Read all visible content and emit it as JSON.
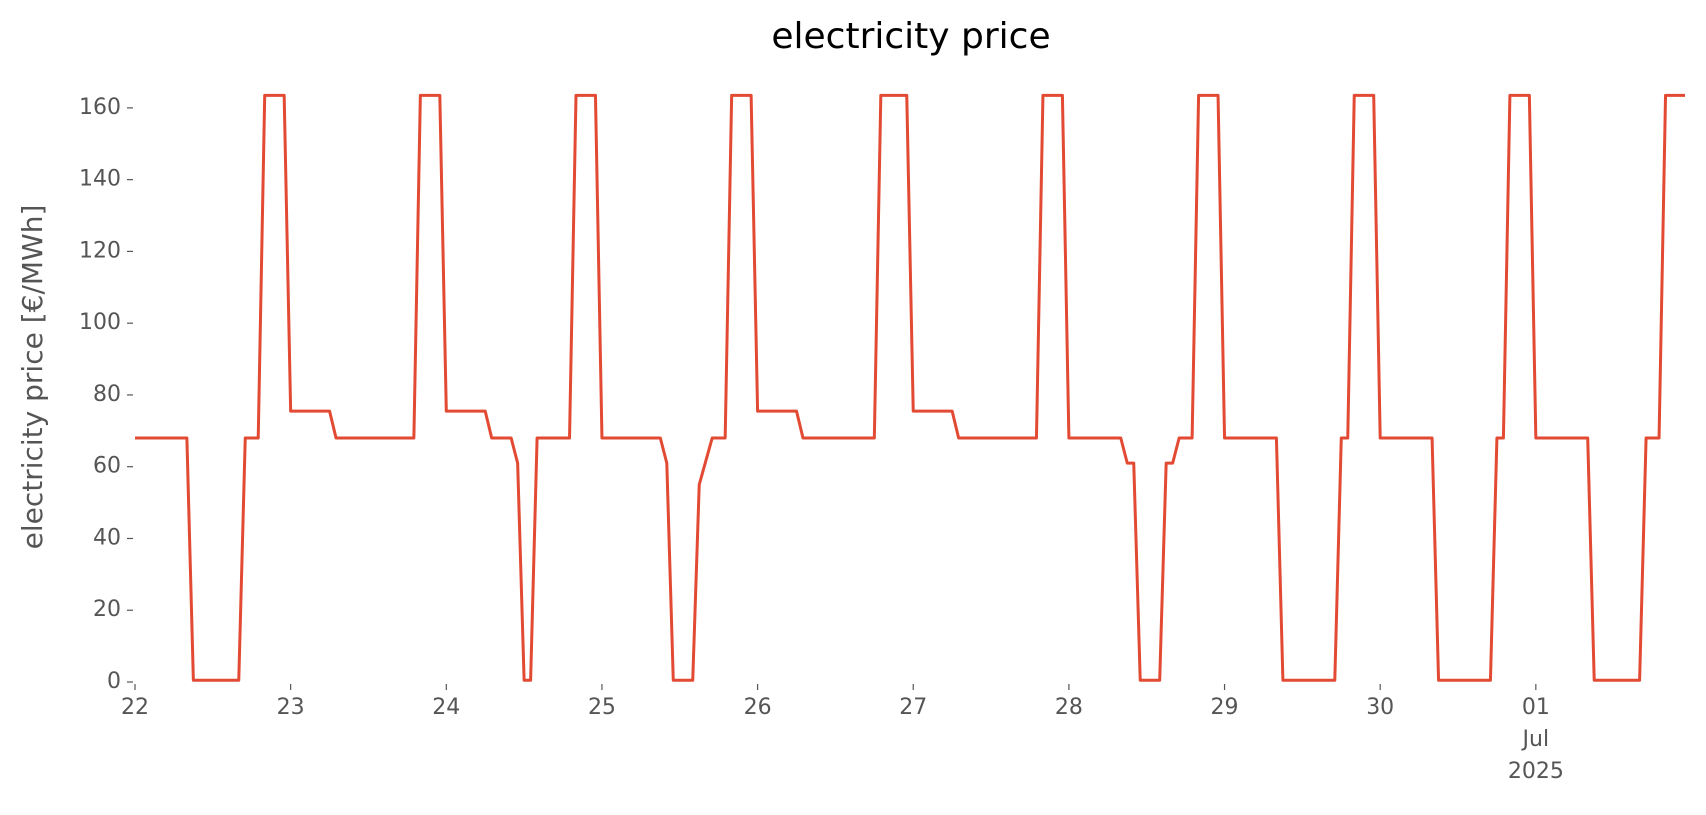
{
  "chart_data": {
    "type": "line",
    "title": "electricity price",
    "y_label": "electricity price [€/MWh]",
    "color": "#e24a33",
    "ylim": [
      0,
      170
    ],
    "yticks": [
      0,
      20,
      40,
      60,
      80,
      100,
      120,
      140,
      160
    ],
    "xlim": [
      "2025-06-22T00:00",
      "2025-07-01T23:00"
    ],
    "xticks": [
      {
        "value": "2025-06-22T00:00",
        "label": "22"
      },
      {
        "value": "2025-06-23T00:00",
        "label": "23"
      },
      {
        "value": "2025-06-24T00:00",
        "label": "24"
      },
      {
        "value": "2025-06-25T00:00",
        "label": "25"
      },
      {
        "value": "2025-06-26T00:00",
        "label": "26"
      },
      {
        "value": "2025-06-27T00:00",
        "label": "27"
      },
      {
        "value": "2025-06-28T00:00",
        "label": "28"
      },
      {
        "value": "2025-06-29T00:00",
        "label": "29"
      },
      {
        "value": "2025-06-30T00:00",
        "label": "30"
      },
      {
        "value": "2025-07-01T00:00",
        "label": "01\nJul\n2025"
      }
    ],
    "x": [
      "2025-06-22T00:00",
      "2025-06-22T01:00",
      "2025-06-22T02:00",
      "2025-06-22T03:00",
      "2025-06-22T04:00",
      "2025-06-22T05:00",
      "2025-06-22T06:00",
      "2025-06-22T07:00",
      "2025-06-22T08:00",
      "2025-06-22T09:00",
      "2025-06-22T10:00",
      "2025-06-22T11:00",
      "2025-06-22T12:00",
      "2025-06-22T13:00",
      "2025-06-22T14:00",
      "2025-06-22T15:00",
      "2025-06-22T16:00",
      "2025-06-22T17:00",
      "2025-06-22T18:00",
      "2025-06-22T19:00",
      "2025-06-22T20:00",
      "2025-06-22T21:00",
      "2025-06-22T22:00",
      "2025-06-22T23:00",
      "2025-06-23T00:00",
      "2025-06-23T01:00",
      "2025-06-23T02:00",
      "2025-06-23T03:00",
      "2025-06-23T04:00",
      "2025-06-23T05:00",
      "2025-06-23T06:00",
      "2025-06-23T07:00",
      "2025-06-23T08:00",
      "2025-06-23T09:00",
      "2025-06-23T10:00",
      "2025-06-23T11:00",
      "2025-06-23T12:00",
      "2025-06-23T13:00",
      "2025-06-23T14:00",
      "2025-06-23T15:00",
      "2025-06-23T16:00",
      "2025-06-23T17:00",
      "2025-06-23T18:00",
      "2025-06-23T19:00",
      "2025-06-23T20:00",
      "2025-06-23T21:00",
      "2025-06-23T22:00",
      "2025-06-23T23:00",
      "2025-06-24T00:00",
      "2025-06-24T01:00",
      "2025-06-24T02:00",
      "2025-06-24T03:00",
      "2025-06-24T04:00",
      "2025-06-24T05:00",
      "2025-06-24T06:00",
      "2025-06-24T07:00",
      "2025-06-24T08:00",
      "2025-06-24T09:00",
      "2025-06-24T10:00",
      "2025-06-24T11:00",
      "2025-06-24T12:00",
      "2025-06-24T13:00",
      "2025-06-24T14:00",
      "2025-06-24T15:00",
      "2025-06-24T16:00",
      "2025-06-24T17:00",
      "2025-06-24T18:00",
      "2025-06-24T19:00",
      "2025-06-24T20:00",
      "2025-06-24T21:00",
      "2025-06-24T22:00",
      "2025-06-24T23:00",
      "2025-06-25T00:00",
      "2025-06-25T01:00",
      "2025-06-25T02:00",
      "2025-06-25T03:00",
      "2025-06-25T04:00",
      "2025-06-25T05:00",
      "2025-06-25T06:00",
      "2025-06-25T07:00",
      "2025-06-25T08:00",
      "2025-06-25T09:00",
      "2025-06-25T10:00",
      "2025-06-25T11:00",
      "2025-06-25T12:00",
      "2025-06-25T13:00",
      "2025-06-25T14:00",
      "2025-06-25T15:00",
      "2025-06-25T16:00",
      "2025-06-25T17:00",
      "2025-06-25T18:00",
      "2025-06-25T19:00",
      "2025-06-25T20:00",
      "2025-06-25T21:00",
      "2025-06-25T22:00",
      "2025-06-25T23:00",
      "2025-06-26T00:00",
      "2025-06-26T01:00",
      "2025-06-26T02:00",
      "2025-06-26T03:00",
      "2025-06-26T04:00",
      "2025-06-26T05:00",
      "2025-06-26T06:00",
      "2025-06-26T07:00",
      "2025-06-26T08:00",
      "2025-06-26T09:00",
      "2025-06-26T10:00",
      "2025-06-26T11:00",
      "2025-06-26T12:00",
      "2025-06-26T13:00",
      "2025-06-26T14:00",
      "2025-06-26T15:00",
      "2025-06-26T16:00",
      "2025-06-26T17:00",
      "2025-06-26T18:00",
      "2025-06-26T19:00",
      "2025-06-26T20:00",
      "2025-06-26T21:00",
      "2025-06-26T22:00",
      "2025-06-26T23:00",
      "2025-06-27T00:00",
      "2025-06-27T01:00",
      "2025-06-27T02:00",
      "2025-06-27T03:00",
      "2025-06-27T04:00",
      "2025-06-27T05:00",
      "2025-06-27T06:00",
      "2025-06-27T07:00",
      "2025-06-27T08:00",
      "2025-06-27T09:00",
      "2025-06-27T10:00",
      "2025-06-27T11:00",
      "2025-06-27T12:00",
      "2025-06-27T13:00",
      "2025-06-27T14:00",
      "2025-06-27T15:00",
      "2025-06-27T16:00",
      "2025-06-27T17:00",
      "2025-06-27T18:00",
      "2025-06-27T19:00",
      "2025-06-27T20:00",
      "2025-06-27T21:00",
      "2025-06-27T22:00",
      "2025-06-27T23:00",
      "2025-06-28T00:00",
      "2025-06-28T01:00",
      "2025-06-28T02:00",
      "2025-06-28T03:00",
      "2025-06-28T04:00",
      "2025-06-28T05:00",
      "2025-06-28T06:00",
      "2025-06-28T07:00",
      "2025-06-28T08:00",
      "2025-06-28T09:00",
      "2025-06-28T10:00",
      "2025-06-28T11:00",
      "2025-06-28T12:00",
      "2025-06-28T13:00",
      "2025-06-28T14:00",
      "2025-06-28T15:00",
      "2025-06-28T16:00",
      "2025-06-28T17:00",
      "2025-06-28T18:00",
      "2025-06-28T19:00",
      "2025-06-28T20:00",
      "2025-06-28T21:00",
      "2025-06-28T22:00",
      "2025-06-28T23:00",
      "2025-06-29T00:00",
      "2025-06-29T01:00",
      "2025-06-29T02:00",
      "2025-06-29T03:00",
      "2025-06-29T04:00",
      "2025-06-29T05:00",
      "2025-06-29T06:00",
      "2025-06-29T07:00",
      "2025-06-29T08:00",
      "2025-06-29T09:00",
      "2025-06-29T10:00",
      "2025-06-29T11:00",
      "2025-06-29T12:00",
      "2025-06-29T13:00",
      "2025-06-29T14:00",
      "2025-06-29T15:00",
      "2025-06-29T16:00",
      "2025-06-29T17:00",
      "2025-06-29T18:00",
      "2025-06-29T19:00",
      "2025-06-29T20:00",
      "2025-06-29T21:00",
      "2025-06-29T22:00",
      "2025-06-29T23:00",
      "2025-06-30T00:00",
      "2025-06-30T01:00",
      "2025-06-30T02:00",
      "2025-06-30T03:00",
      "2025-06-30T04:00",
      "2025-06-30T05:00",
      "2025-06-30T06:00",
      "2025-06-30T07:00",
      "2025-06-30T08:00",
      "2025-06-30T09:00",
      "2025-06-30T10:00",
      "2025-06-30T11:00",
      "2025-06-30T12:00",
      "2025-06-30T13:00",
      "2025-06-30T14:00",
      "2025-06-30T15:00",
      "2025-06-30T16:00",
      "2025-06-30T17:00",
      "2025-06-30T18:00",
      "2025-06-30T19:00",
      "2025-06-30T20:00",
      "2025-06-30T21:00",
      "2025-06-30T22:00",
      "2025-06-30T23:00",
      "2025-07-01T00:00",
      "2025-07-01T01:00",
      "2025-07-01T02:00",
      "2025-07-01T03:00",
      "2025-07-01T04:00",
      "2025-07-01T05:00",
      "2025-07-01T06:00",
      "2025-07-01T07:00",
      "2025-07-01T08:00",
      "2025-07-01T09:00",
      "2025-07-01T10:00",
      "2025-07-01T11:00",
      "2025-07-01T12:00",
      "2025-07-01T13:00",
      "2025-07-01T14:00",
      "2025-07-01T15:00",
      "2025-07-01T16:00",
      "2025-07-01T17:00",
      "2025-07-01T18:00",
      "2025-07-01T19:00",
      "2025-07-01T20:00",
      "2025-07-01T21:00",
      "2025-07-01T22:00",
      "2025-07-01T23:00"
    ],
    "values": [
      68,
      68,
      68,
      68,
      68,
      68,
      68,
      68,
      68,
      0.5,
      0.5,
      0.5,
      0.5,
      0.5,
      0.5,
      0.5,
      0.5,
      68,
      68,
      68,
      163.5,
      163.5,
      163.5,
      163.5,
      75.5,
      75.5,
      75.5,
      75.5,
      75.5,
      75.5,
      75.5,
      68,
      68,
      68,
      68,
      68,
      68,
      68,
      68,
      68,
      68,
      68,
      68,
      68,
      163.5,
      163.5,
      163.5,
      163.5,
      75.5,
      75.5,
      75.5,
      75.5,
      75.5,
      75.5,
      75.5,
      68,
      68,
      68,
      68,
      61,
      0.5,
      0.5,
      68,
      68,
      68,
      68,
      68,
      68,
      163.5,
      163.5,
      163.5,
      163.5,
      68,
      68,
      68,
      68,
      68,
      68,
      68,
      68,
      68,
      68,
      61,
      0.5,
      0.5,
      0.5,
      0.5,
      55,
      61.5,
      68,
      68,
      68,
      163.5,
      163.5,
      163.5,
      163.5,
      75.5,
      75.5,
      75.5,
      75.5,
      75.5,
      75.5,
      75.5,
      68,
      68,
      68,
      68,
      68,
      68,
      68,
      68,
      68,
      68,
      68,
      68,
      163.5,
      163.5,
      163.5,
      163.5,
      163.5,
      75.5,
      75.5,
      75.5,
      75.5,
      75.5,
      75.5,
      75.5,
      68,
      68,
      68,
      68,
      68,
      68,
      68,
      68,
      68,
      68,
      68,
      68,
      68,
      163.5,
      163.5,
      163.5,
      163.5,
      68,
      68,
      68,
      68,
      68,
      68,
      68,
      68,
      68,
      61,
      61,
      0.5,
      0.5,
      0.5,
      0.5,
      61,
      61,
      68,
      68,
      68,
      163.5,
      163.5,
      163.5,
      163.5,
      68,
      68,
      68,
      68,
      68,
      68,
      68,
      68,
      68,
      0.5,
      0.5,
      0.5,
      0.5,
      0.5,
      0.5,
      0.5,
      0.5,
      0.5,
      68,
      68,
      163.5,
      163.5,
      163.5,
      163.5,
      68,
      68,
      68,
      68,
      68,
      68,
      68,
      68,
      68,
      0.5,
      0.5,
      0.5,
      0.5,
      0.5,
      0.5,
      0.5,
      0.5,
      0.5,
      68,
      68,
      163.5,
      163.5,
      163.5,
      163.5,
      68,
      68,
      68,
      68,
      68,
      68,
      68,
      68,
      68,
      0.5,
      0.5,
      0.5,
      0.5,
      0.5,
      0.5,
      0.5,
      0.5,
      68,
      68,
      68,
      163.5,
      163.5,
      163.5,
      163.5
    ]
  }
}
